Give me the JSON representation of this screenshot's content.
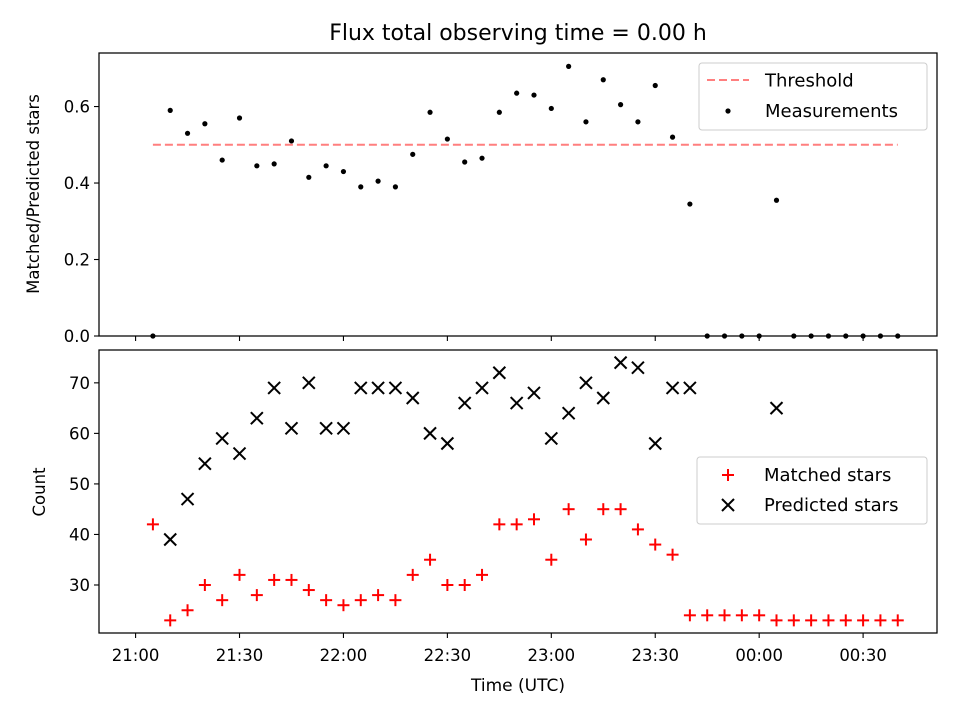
{
  "title": "Flux total observing time = 0.00 h",
  "xlabel": "Time (UTC)",
  "x_tick_labels": [
    "21:00",
    "21:30",
    "22:00",
    "22:30",
    "23:00",
    "23:30",
    "00:00",
    "00:30"
  ],
  "colors": {
    "threshold": "#ff7f7f",
    "measurements": "#000000",
    "matched": "#ff0000",
    "predicted": "#000000"
  },
  "chart_data": [
    {
      "type": "scatter",
      "panel": "top",
      "ylabel": "Matched/Predicted stars",
      "ylim": [
        0,
        0.74
      ],
      "yticks": [
        0.0,
        0.2,
        0.4,
        0.6
      ],
      "ytick_labels": [
        "0.0",
        "0.2",
        "0.4",
        "0.6"
      ],
      "legend_position": "top-right",
      "threshold": {
        "name": "Threshold",
        "value": 0.5,
        "x_start": "21:05",
        "x_end": "00:40"
      },
      "series": [
        {
          "name": "Measurements",
          "marker": "dot",
          "x": [
            "21:05",
            "21:10",
            "21:15",
            "21:20",
            "21:25",
            "21:30",
            "21:35",
            "21:40",
            "21:45",
            "21:50",
            "21:55",
            "22:00",
            "22:05",
            "22:10",
            "22:15",
            "22:20",
            "22:25",
            "22:30",
            "22:35",
            "22:40",
            "22:45",
            "22:50",
            "22:55",
            "23:00",
            "23:05",
            "23:10",
            "23:15",
            "23:20",
            "23:25",
            "23:30",
            "23:35",
            "23:40",
            "23:45",
            "23:50",
            "23:55",
            "00:00",
            "00:05",
            "00:10",
            "00:15",
            "00:20",
            "00:25",
            "00:30",
            "00:35",
            "00:40"
          ],
          "y": [
            0.0,
            0.59,
            0.53,
            0.555,
            0.46,
            0.57,
            0.445,
            0.45,
            0.51,
            0.415,
            0.445,
            0.43,
            0.39,
            0.405,
            0.39,
            0.475,
            0.585,
            0.515,
            0.455,
            0.465,
            0.585,
            0.635,
            0.63,
            0.595,
            0.705,
            0.56,
            0.67,
            0.605,
            0.56,
            0.655,
            0.52,
            0.345,
            0.0,
            0.0,
            0.0,
            0.0,
            0.355,
            0.0,
            0.0,
            0.0,
            0.0,
            0.0,
            0.0,
            0.0
          ]
        }
      ]
    },
    {
      "type": "scatter",
      "panel": "bottom",
      "ylabel": "Count",
      "ylim": [
        20.5,
        76.5
      ],
      "yticks": [
        30,
        40,
        50,
        60,
        70
      ],
      "ytick_labels": [
        "30",
        "40",
        "50",
        "60",
        "70"
      ],
      "legend_position": "center-right",
      "series": [
        {
          "name": "Matched stars",
          "marker": "plus",
          "x": [
            "21:05",
            "21:10",
            "21:15",
            "21:20",
            "21:25",
            "21:30",
            "21:35",
            "21:40",
            "21:45",
            "21:50",
            "21:55",
            "22:00",
            "22:05",
            "22:10",
            "22:15",
            "22:20",
            "22:25",
            "22:30",
            "22:35",
            "22:40",
            "22:45",
            "22:50",
            "22:55",
            "23:00",
            "23:05",
            "23:10",
            "23:15",
            "23:20",
            "23:25",
            "23:30",
            "23:35",
            "23:40",
            "23:45",
            "23:50",
            "23:55",
            "00:00",
            "00:05",
            "00:10",
            "00:15",
            "00:20",
            "00:25",
            "00:30",
            "00:35",
            "00:40"
          ],
          "y": [
            42,
            23,
            25,
            30,
            27,
            32,
            28,
            31,
            31,
            29,
            27,
            26,
            27,
            28,
            27,
            32,
            35,
            30,
            30,
            32,
            42,
            42,
            43,
            35,
            45,
            39,
            45,
            45,
            41,
            38,
            36,
            24,
            24,
            24,
            24,
            24,
            23,
            23,
            23,
            23,
            23,
            23,
            23,
            23
          ]
        },
        {
          "name": "Predicted stars",
          "marker": "x",
          "x": [
            "21:10",
            "21:15",
            "21:20",
            "21:25",
            "21:30",
            "21:35",
            "21:40",
            "21:45",
            "21:50",
            "21:55",
            "22:00",
            "22:05",
            "22:10",
            "22:15",
            "22:20",
            "22:25",
            "22:30",
            "22:35",
            "22:40",
            "22:45",
            "22:50",
            "22:55",
            "23:00",
            "23:05",
            "23:10",
            "23:15",
            "23:20",
            "23:25",
            "23:30",
            "23:35",
            "23:40",
            "00:05"
          ],
          "y": [
            39,
            47,
            54,
            59,
            56,
            63,
            69,
            61,
            70,
            61,
            61,
            69,
            69,
            69,
            67,
            60,
            58,
            66,
            69,
            72,
            66,
            68,
            59,
            64,
            70,
            67,
            74,
            73,
            58,
            69,
            69,
            65
          ]
        }
      ]
    }
  ]
}
